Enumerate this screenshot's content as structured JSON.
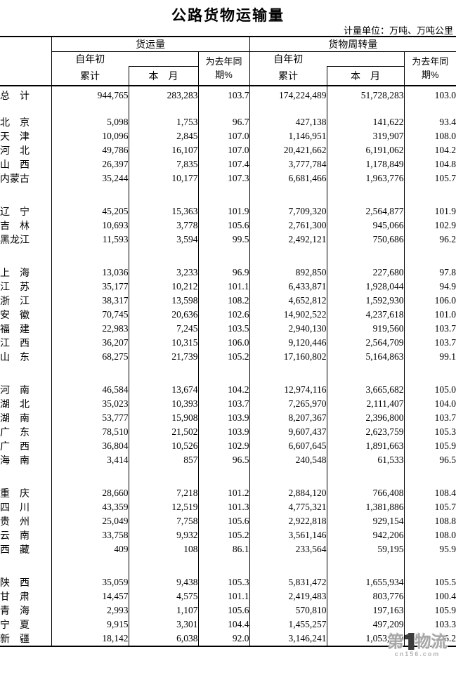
{
  "title": "公路货物运输量",
  "unit_note": "计量单位：万吨、万吨公里",
  "header": {
    "freight_volume": "货运量",
    "freight_turnover": "货物周转量",
    "since_year_start": "自年初",
    "cumulative": "累计",
    "this_month": "本　月",
    "yoy_label": "为去年同期%"
  },
  "total": {
    "name": "总　计",
    "values": [
      "944,765",
      "283,283",
      "103.7",
      "174,224,489",
      "51,728,283",
      "103.0"
    ]
  },
  "groups": [
    {
      "rows": [
        {
          "name": "北　京",
          "values": [
            "5,098",
            "1,753",
            "96.7",
            "427,138",
            "141,622",
            "93.4"
          ]
        },
        {
          "name": "天　津",
          "values": [
            "10,096",
            "2,845",
            "107.0",
            "1,146,951",
            "319,907",
            "108.0"
          ]
        },
        {
          "name": "河　北",
          "values": [
            "49,786",
            "16,107",
            "107.0",
            "20,421,662",
            "6,191,062",
            "104.2"
          ]
        },
        {
          "name": "山　西",
          "values": [
            "26,397",
            "7,835",
            "107.4",
            "3,777,784",
            "1,178,849",
            "104.8"
          ]
        },
        {
          "name": "内蒙古",
          "values": [
            "35,244",
            "10,177",
            "107.3",
            "6,681,466",
            "1,963,776",
            "105.7"
          ]
        }
      ]
    },
    {
      "rows": [
        {
          "name": "辽　宁",
          "values": [
            "45,205",
            "15,363",
            "101.9",
            "7,709,320",
            "2,564,877",
            "101.9"
          ]
        },
        {
          "name": "吉　林",
          "values": [
            "10,693",
            "3,778",
            "105.6",
            "2,761,300",
            "945,066",
            "102.9"
          ]
        },
        {
          "name": "黑龙江",
          "values": [
            "11,593",
            "3,594",
            "99.5",
            "2,492,121",
            "750,686",
            "96.2"
          ]
        }
      ]
    },
    {
      "rows": [
        {
          "name": "上　海",
          "values": [
            "13,036",
            "3,233",
            "96.9",
            "892,850",
            "227,680",
            "97.8"
          ]
        },
        {
          "name": "江　苏",
          "values": [
            "35,177",
            "10,212",
            "101.1",
            "6,433,871",
            "1,928,044",
            "94.9"
          ]
        },
        {
          "name": "浙　江",
          "values": [
            "38,317",
            "13,598",
            "108.2",
            "4,652,812",
            "1,592,930",
            "106.0"
          ]
        },
        {
          "name": "安　徽",
          "values": [
            "70,745",
            "20,636",
            "102.6",
            "14,902,522",
            "4,237,618",
            "101.0"
          ]
        },
        {
          "name": "福　建",
          "values": [
            "22,983",
            "7,245",
            "103.5",
            "2,940,130",
            "919,560",
            "103.7"
          ]
        },
        {
          "name": "江　西",
          "values": [
            "36,207",
            "10,315",
            "106.0",
            "9,120,446",
            "2,564,709",
            "103.7"
          ]
        },
        {
          "name": "山　东",
          "values": [
            "68,275",
            "21,739",
            "105.2",
            "17,160,802",
            "5,164,863",
            "99.1"
          ]
        }
      ]
    },
    {
      "rows": [
        {
          "name": "河　南",
          "values": [
            "46,584",
            "13,674",
            "104.2",
            "12,974,116",
            "3,665,682",
            "105.0"
          ]
        },
        {
          "name": "湖　北",
          "values": [
            "35,023",
            "10,393",
            "103.7",
            "7,265,970",
            "2,111,407",
            "104.0"
          ]
        },
        {
          "name": "湖　南",
          "values": [
            "53,777",
            "15,908",
            "103.9",
            "8,207,367",
            "2,396,800",
            "103.7"
          ]
        },
        {
          "name": "广　东",
          "values": [
            "78,510",
            "21,502",
            "103.9",
            "9,607,437",
            "2,623,759",
            "105.3"
          ]
        },
        {
          "name": "广　西",
          "values": [
            "36,804",
            "10,526",
            "102.9",
            "6,607,645",
            "1,891,663",
            "105.9"
          ]
        },
        {
          "name": "海　南",
          "values": [
            "3,414",
            "857",
            "96.5",
            "240,548",
            "61,533",
            "96.5"
          ]
        }
      ]
    },
    {
      "rows": [
        {
          "name": "重　庆",
          "values": [
            "28,660",
            "7,218",
            "101.2",
            "2,884,120",
            "766,408",
            "108.4"
          ]
        },
        {
          "name": "四　川",
          "values": [
            "43,359",
            "12,519",
            "101.3",
            "4,775,321",
            "1,381,886",
            "105.7"
          ]
        },
        {
          "name": "贵　州",
          "values": [
            "25,049",
            "7,758",
            "105.6",
            "2,922,818",
            "929,154",
            "108.8"
          ]
        },
        {
          "name": "云　南",
          "values": [
            "33,758",
            "9,932",
            "105.2",
            "3,561,146",
            "942,206",
            "108.0"
          ]
        },
        {
          "name": "西　藏",
          "values": [
            "409",
            "108",
            "86.1",
            "233,564",
            "59,195",
            "95.9"
          ]
        }
      ]
    },
    {
      "rows": [
        {
          "name": "陕　西",
          "values": [
            "35,059",
            "9,438",
            "105.3",
            "5,831,472",
            "1,655,934",
            "105.5"
          ]
        },
        {
          "name": "甘　肃",
          "values": [
            "14,457",
            "4,575",
            "101.1",
            "2,419,483",
            "803,776",
            "100.4"
          ]
        },
        {
          "name": "青　海",
          "values": [
            "2,993",
            "1,107",
            "105.6",
            "570,810",
            "197,163",
            "105.9"
          ]
        },
        {
          "name": "宁　夏",
          "values": [
            "9,915",
            "3,301",
            "104.4",
            "1,455,257",
            "497,209",
            "103.3"
          ]
        },
        {
          "name": "新　疆",
          "values": [
            "18,142",
            "6,038",
            "92.0",
            "3,146,241",
            "1,053,260",
            "96.2"
          ]
        }
      ]
    }
  ],
  "watermark": {
    "prefix": "第",
    "one": "1",
    "suffix": "物流",
    "site": "cn156.com"
  }
}
